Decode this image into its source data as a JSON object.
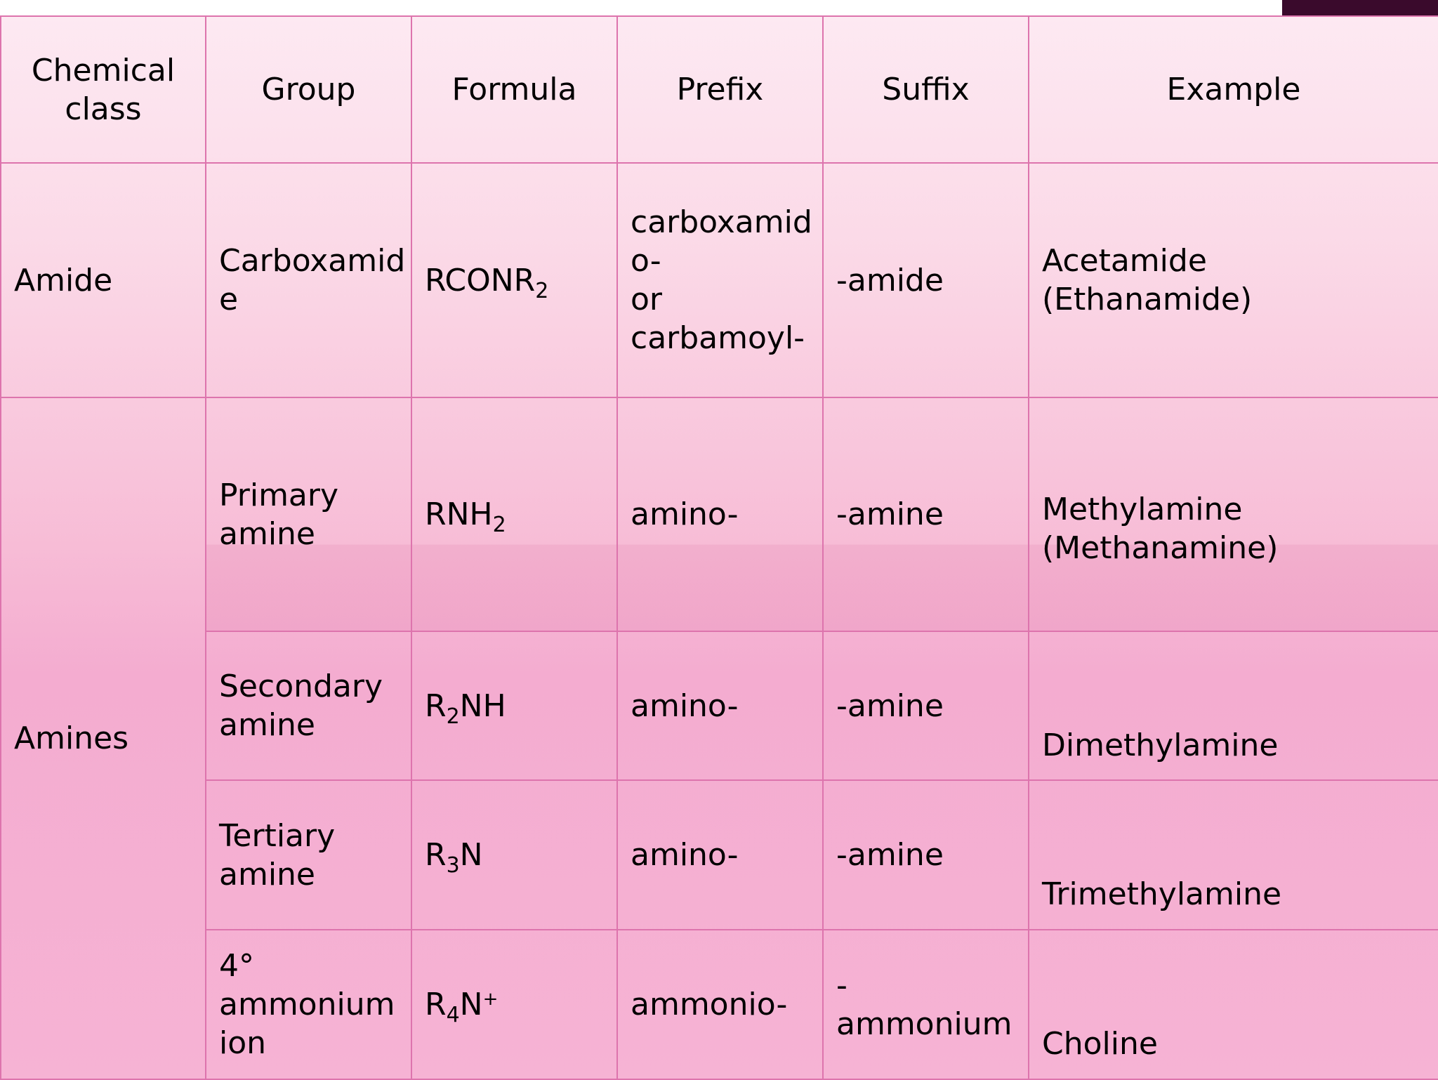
{
  "headers": {
    "chemical_class": "Chemical\nclass",
    "group": "Group",
    "formula": "Formula",
    "prefix": "Prefix",
    "suffix": "Suffix",
    "example": "Example"
  },
  "rows": {
    "amide": {
      "class": "Amide",
      "group": "Carboxamid\ne",
      "formula_main": "RCONR",
      "formula_sub": "2",
      "prefix": "carboxamid\no-\nor\ncarbamoyl-",
      "suffix": "-amide",
      "example": "Acetamide\n(Ethanamide)"
    },
    "amines_class": "Amines",
    "primary": {
      "group": "Primary\namine",
      "formula_main": "RNH",
      "formula_sub": "2",
      "prefix": "amino-",
      "suffix": "-amine",
      "example": "Methylamine\n(Methanamine)"
    },
    "secondary": {
      "group": "Secondary\namine",
      "formula_r": "R",
      "formula_sub": "2",
      "formula_rest": "NH",
      "prefix": "amino-",
      "suffix": "-amine",
      "example": "Dimethylamine"
    },
    "tertiary": {
      "group": "Tertiary\namine",
      "formula_r": "R",
      "formula_sub": "3",
      "formula_rest": "N",
      "prefix": "amino-",
      "suffix": "-amine",
      "example": "Trimethylamine"
    },
    "quaternary": {
      "group": "4°\nammonium\nion",
      "formula_r": "R",
      "formula_sub": "4",
      "formula_rest": "N",
      "formula_sup": "+",
      "prefix": "ammonio-",
      "suffix": "-ammonium",
      "example": "Choline"
    }
  }
}
